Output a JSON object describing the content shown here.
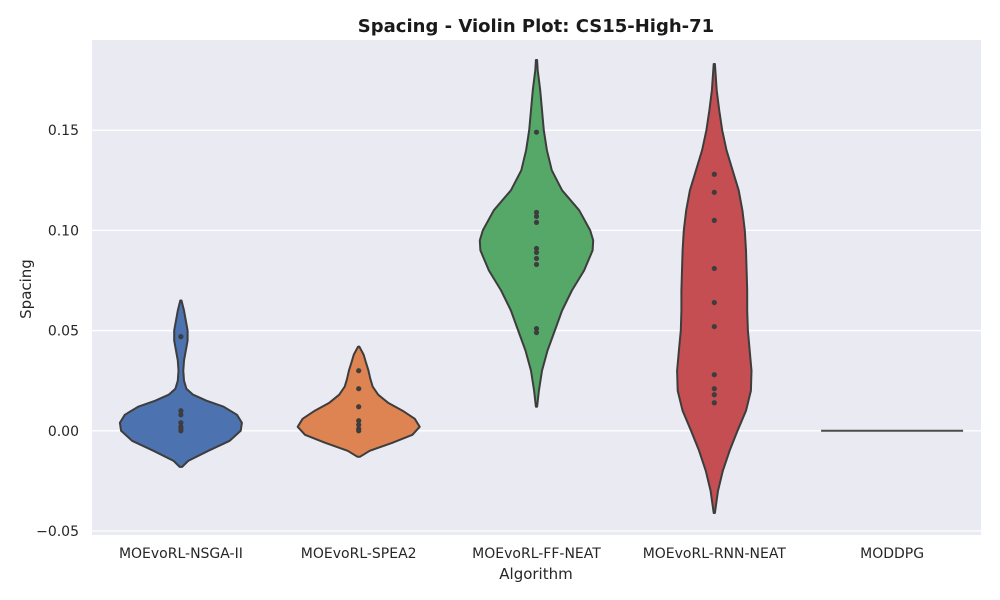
{
  "chart_data": {
    "type": "violin",
    "title": "Spacing - Violin Plot: CS15-High-71",
    "xlabel": "Algorithm",
    "ylabel": "Spacing",
    "ylim": [
      -0.052,
      0.195
    ],
    "yticks": [
      -0.05,
      0.0,
      0.05,
      0.1,
      0.15
    ],
    "ytick_labels": [
      "−0.05",
      "0.00",
      "0.05",
      "0.10",
      "0.15"
    ],
    "grid": true,
    "background_color": "#EAEAF2",
    "categories": [
      "MOEvoRL-NSGA-II",
      "MOEvoRL-SPEA2",
      "MOEvoRL-FF-NEAT",
      "MOEvoRL-RNN-NEAT",
      "MODDPG"
    ],
    "series": [
      {
        "category": "MOEvoRL-NSGA-II",
        "color": "#4C72B0",
        "points": [
          0.047,
          0.01,
          0.008,
          0.004,
          0.002,
          0.001,
          0.0
        ],
        "violin_range": [
          -0.018,
          0.065
        ],
        "density": [
          [
            -0.018,
            0.02
          ],
          [
            -0.015,
            0.12
          ],
          [
            -0.01,
            0.45
          ],
          [
            -0.005,
            0.8
          ],
          [
            0.0,
            0.98
          ],
          [
            0.004,
            1.0
          ],
          [
            0.008,
            0.92
          ],
          [
            0.012,
            0.7
          ],
          [
            0.015,
            0.42
          ],
          [
            0.018,
            0.2
          ],
          [
            0.021,
            0.09
          ],
          [
            0.025,
            0.05
          ],
          [
            0.03,
            0.04
          ],
          [
            0.035,
            0.05
          ],
          [
            0.04,
            0.08
          ],
          [
            0.045,
            0.11
          ],
          [
            0.05,
            0.11
          ],
          [
            0.055,
            0.08
          ],
          [
            0.06,
            0.05
          ],
          [
            0.065,
            0.01
          ]
        ]
      },
      {
        "category": "MOEvoRL-SPEA2",
        "color": "#DD8452",
        "points": [
          0.03,
          0.021,
          0.012,
          0.005,
          0.003,
          0.001,
          0.0
        ],
        "violin_range": [
          -0.013,
          0.042
        ],
        "density": [
          [
            -0.013,
            0.02
          ],
          [
            -0.01,
            0.18
          ],
          [
            -0.006,
            0.55
          ],
          [
            -0.002,
            0.88
          ],
          [
            0.002,
            1.0
          ],
          [
            0.006,
            0.92
          ],
          [
            0.01,
            0.72
          ],
          [
            0.014,
            0.48
          ],
          [
            0.018,
            0.32
          ],
          [
            0.022,
            0.23
          ],
          [
            0.026,
            0.19
          ],
          [
            0.03,
            0.16
          ],
          [
            0.034,
            0.12
          ],
          [
            0.038,
            0.08
          ],
          [
            0.042,
            0.01
          ]
        ]
      },
      {
        "category": "MOEvoRL-FF-NEAT",
        "color": "#55A868",
        "points": [
          0.149,
          0.109,
          0.107,
          0.104,
          0.091,
          0.089,
          0.086,
          0.083,
          0.051,
          0.049
        ],
        "violin_range": [
          0.012,
          0.185
        ],
        "density": [
          [
            0.012,
            0.01
          ],
          [
            0.02,
            0.04
          ],
          [
            0.03,
            0.09
          ],
          [
            0.04,
            0.18
          ],
          [
            0.05,
            0.3
          ],
          [
            0.06,
            0.42
          ],
          [
            0.07,
            0.58
          ],
          [
            0.08,
            0.78
          ],
          [
            0.09,
            0.92
          ],
          [
            0.095,
            0.93
          ],
          [
            0.1,
            0.88
          ],
          [
            0.11,
            0.7
          ],
          [
            0.12,
            0.42
          ],
          [
            0.13,
            0.25
          ],
          [
            0.14,
            0.17
          ],
          [
            0.15,
            0.12
          ],
          [
            0.16,
            0.09
          ],
          [
            0.17,
            0.06
          ],
          [
            0.18,
            0.02
          ],
          [
            0.185,
            0.01
          ]
        ]
      },
      {
        "category": "MOEvoRL-RNN-NEAT",
        "color": "#C44E52",
        "points": [
          0.128,
          0.119,
          0.105,
          0.081,
          0.064,
          0.052,
          0.028,
          0.021,
          0.018,
          0.014
        ],
        "violin_range": [
          -0.041,
          0.183
        ],
        "density": [
          [
            -0.041,
            0.01
          ],
          [
            -0.03,
            0.06
          ],
          [
            -0.02,
            0.14
          ],
          [
            -0.01,
            0.25
          ],
          [
            0.0,
            0.38
          ],
          [
            0.01,
            0.52
          ],
          [
            0.02,
            0.6
          ],
          [
            0.03,
            0.61
          ],
          [
            0.04,
            0.58
          ],
          [
            0.05,
            0.55
          ],
          [
            0.06,
            0.54
          ],
          [
            0.07,
            0.54
          ],
          [
            0.08,
            0.53
          ],
          [
            0.09,
            0.52
          ],
          [
            0.1,
            0.5
          ],
          [
            0.11,
            0.46
          ],
          [
            0.12,
            0.4
          ],
          [
            0.13,
            0.3
          ],
          [
            0.14,
            0.2
          ],
          [
            0.15,
            0.13
          ],
          [
            0.16,
            0.08
          ],
          [
            0.17,
            0.04
          ],
          [
            0.183,
            0.01
          ]
        ]
      },
      {
        "category": "MODDPG",
        "color": "#4D4D4D",
        "points": [
          0.0
        ],
        "violin_range": [
          0.0,
          0.0
        ],
        "density": []
      }
    ]
  }
}
